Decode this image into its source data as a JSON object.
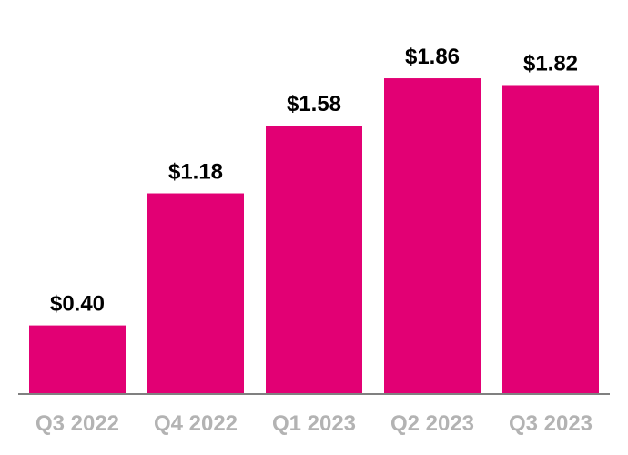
{
  "chart_data": {
    "type": "bar",
    "title": "",
    "xlabel": "",
    "ylabel": "",
    "categories": [
      "Q3 2022",
      "Q4 2022",
      "Q1 2023",
      "Q2 2023",
      "Q3 2023"
    ],
    "values": [
      0.4,
      1.18,
      1.58,
      1.86,
      1.82
    ],
    "value_labels": [
      "$0.40",
      "$1.18",
      "$1.58",
      "$1.86",
      "$1.82"
    ],
    "ylim": [
      0,
      2.0
    ],
    "grid": false,
    "legend": "none",
    "colors": {
      "bar": "#E20074",
      "axis": "#808080",
      "category_label": "#B3B3B3",
      "value_label": "#000000"
    }
  }
}
